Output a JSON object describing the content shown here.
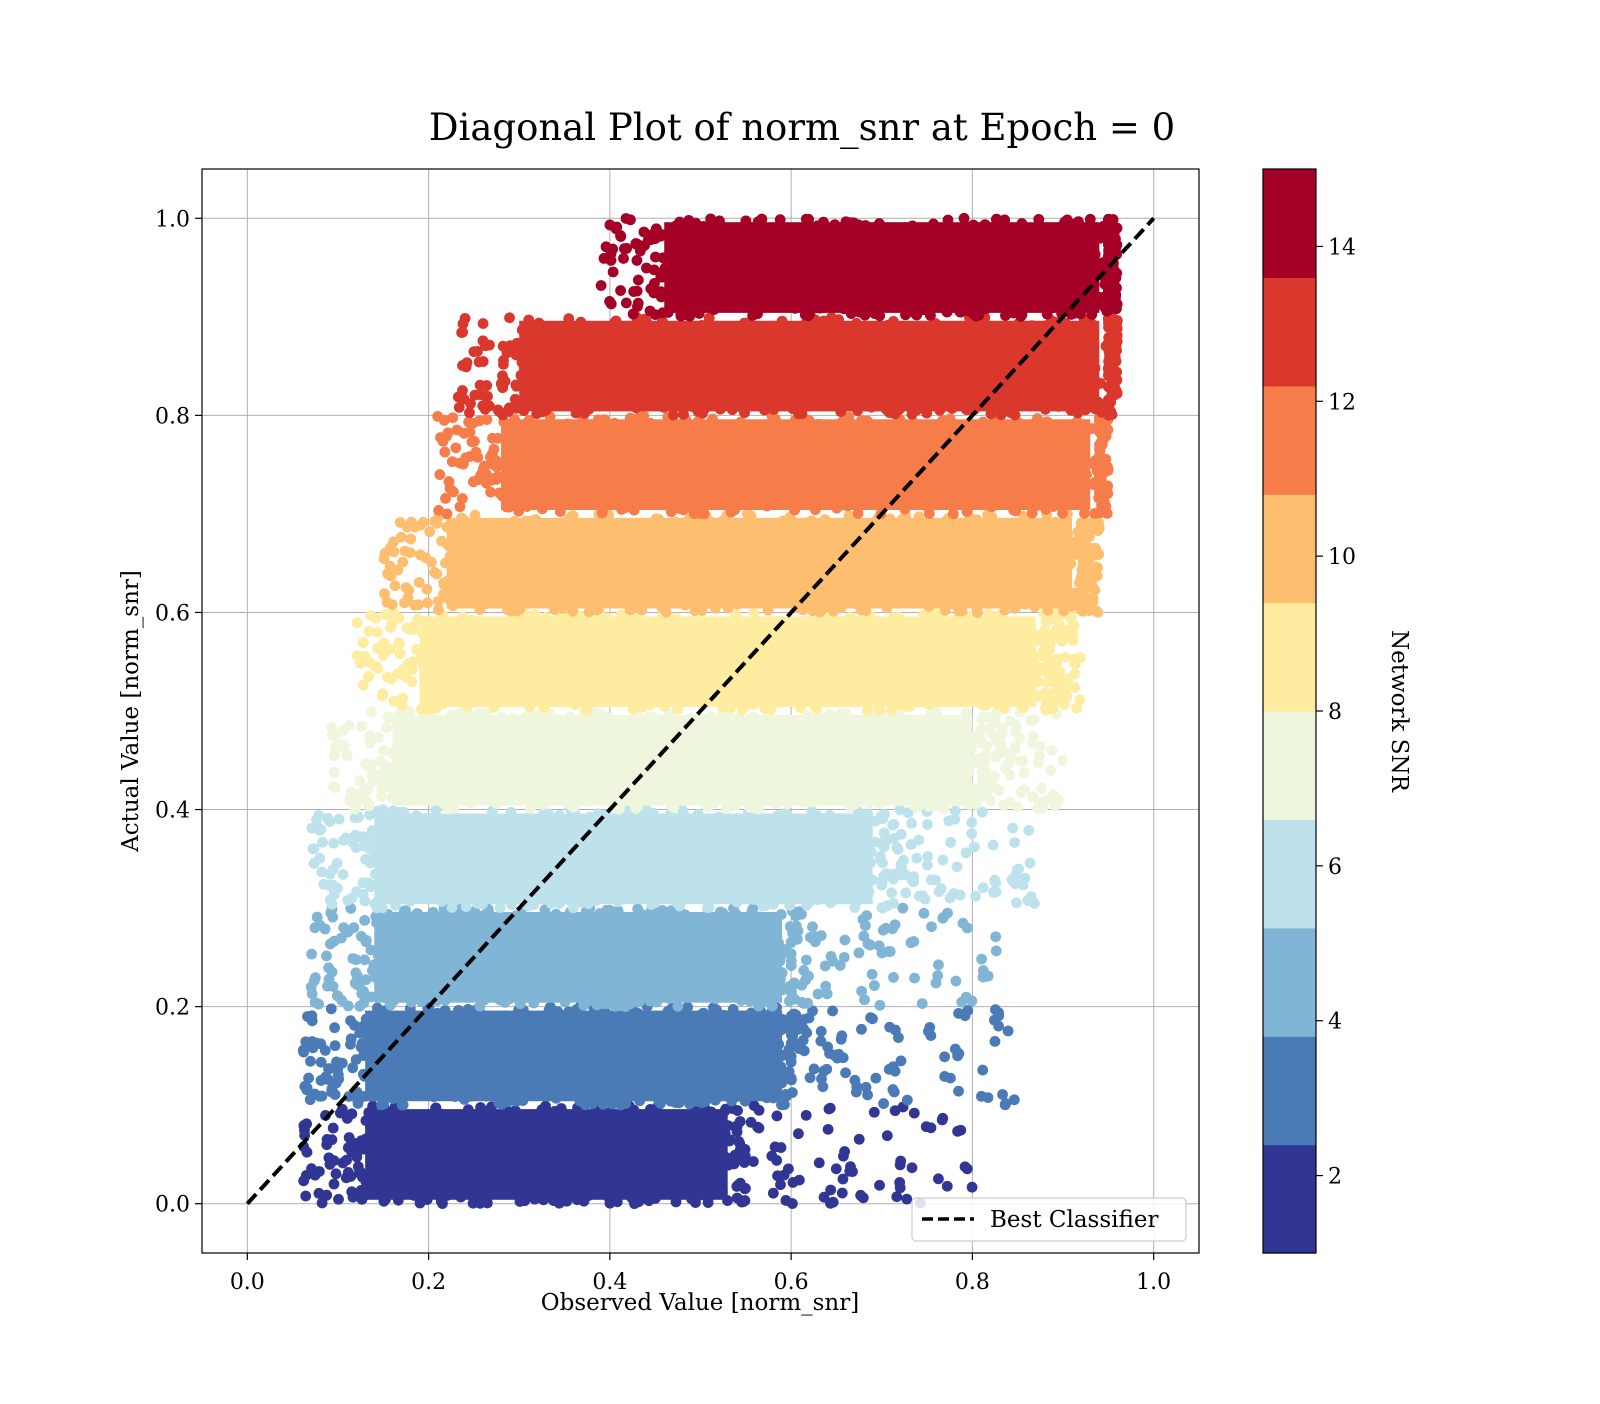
{
  "chart_data": {
    "type": "scatter",
    "title": "Diagonal Plot of norm_snr at Epoch = 0",
    "xlabel": "Observed Value [norm_snr]",
    "ylabel": "Actual Value [norm_snr]",
    "xlim": [
      -0.05,
      1.05
    ],
    "ylim": [
      -0.05,
      1.05
    ],
    "x_ticks": [
      "0.0",
      "0.2",
      "0.4",
      "0.6",
      "0.8",
      "1.0"
    ],
    "y_ticks": [
      "0.0",
      "0.2",
      "0.4",
      "0.6",
      "0.8",
      "1.0"
    ],
    "grid": true,
    "legend": {
      "position": "lower-right",
      "entries": [
        "Best Classifier"
      ]
    },
    "reference_line": {
      "name": "Best Classifier",
      "style": "dashed",
      "color": "#000000",
      "points": [
        [
          0,
          0
        ],
        [
          1,
          1
        ]
      ]
    },
    "colorbar": {
      "label": "Network SNR",
      "range": [
        1,
        15
      ],
      "ticks": [
        "2",
        "4",
        "6",
        "8",
        "10",
        "12",
        "14"
      ],
      "bins": [
        {
          "y_range": [
            0.0,
            0.1
          ],
          "color": "#313695"
        },
        {
          "y_range": [
            0.1,
            0.2
          ],
          "color": "#4a7bb7"
        },
        {
          "y_range": [
            0.2,
            0.3
          ],
          "color": "#81b5d6"
        },
        {
          "y_range": [
            0.3,
            0.4
          ],
          "color": "#bee2ec"
        },
        {
          "y_range": [
            0.4,
            0.5
          ],
          "color": "#eef7dd"
        },
        {
          "y_range": [
            0.5,
            0.6
          ],
          "color": "#feeda1"
        },
        {
          "y_range": [
            0.6,
            0.7
          ],
          "color": "#fdbf6f"
        },
        {
          "y_range": [
            0.7,
            0.8
          ],
          "color": "#f67c4a"
        },
        {
          "y_range": [
            0.8,
            0.9
          ],
          "color": "#da382c"
        },
        {
          "y_range": [
            0.9,
            1.0
          ],
          "color": "#a50026"
        }
      ]
    },
    "series": [
      {
        "y_range": [
          0.0,
          0.1
        ],
        "dense_x_range": [
          0.12,
          0.54
        ],
        "sparse_x_max": 0.8,
        "color": "#313695"
      },
      {
        "y_range": [
          0.1,
          0.2
        ],
        "dense_x_range": [
          0.12,
          0.6
        ],
        "sparse_x_max": 0.85,
        "color": "#4a7bb7"
      },
      {
        "y_range": [
          0.2,
          0.3
        ],
        "dense_x_range": [
          0.13,
          0.6
        ],
        "sparse_x_max": 0.83,
        "color": "#81b5d6"
      },
      {
        "y_range": [
          0.3,
          0.4
        ],
        "dense_x_range": [
          0.13,
          0.7
        ],
        "sparse_x_max": 0.87,
        "color": "#bee2ec"
      },
      {
        "y_range": [
          0.4,
          0.5
        ],
        "dense_x_range": [
          0.15,
          0.81
        ],
        "sparse_x_max": 0.9,
        "color": "#eef7dd"
      },
      {
        "y_range": [
          0.5,
          0.6
        ],
        "dense_x_range": [
          0.18,
          0.88
        ],
        "sparse_x_max": 0.92,
        "color": "#feeda1"
      },
      {
        "y_range": [
          0.6,
          0.7
        ],
        "dense_x_range": [
          0.21,
          0.92
        ],
        "sparse_x_max": 0.94,
        "color": "#fdbf6f"
      },
      {
        "y_range": [
          0.7,
          0.8
        ],
        "dense_x_range": [
          0.27,
          0.94
        ],
        "sparse_x_max": 0.95,
        "color": "#f67c4a"
      },
      {
        "y_range": [
          0.8,
          0.9
        ],
        "dense_x_range": [
          0.29,
          0.95
        ],
        "sparse_x_max": 0.96,
        "color": "#da382c"
      },
      {
        "y_range": [
          0.9,
          1.0
        ],
        "dense_x_range": [
          0.45,
          0.95
        ],
        "sparse_x_max": 0.96,
        "color": "#a50026"
      }
    ]
  }
}
